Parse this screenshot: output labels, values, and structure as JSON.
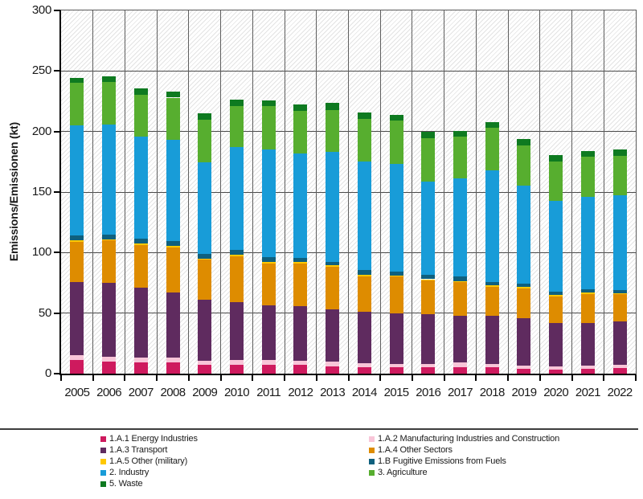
{
  "chart_data": {
    "type": "bar",
    "stacked": true,
    "title": "",
    "xlabel": "",
    "ylabel": "Emissions/Emissionen (kt)",
    "unit": "kt",
    "ylim": [
      0,
      300
    ],
    "yticks": [
      0,
      50,
      100,
      150,
      200,
      250,
      300
    ],
    "grid": "horizontal gridlines every 50; vertical separators between year columns; hatched plot background",
    "legend_position": "bottom, two columns",
    "categories": [
      "2005",
      "2006",
      "2007",
      "2008",
      "2009",
      "2010",
      "2011",
      "2012",
      "2013",
      "2014",
      "2015",
      "2016",
      "2017",
      "2018",
      "2019",
      "2020",
      "2021",
      "2022"
    ],
    "series": [
      {
        "name": "1.A.1 Energy Industries",
        "color": "#CE1A5E",
        "values": [
          11,
          10,
          9,
          9,
          7,
          7,
          7,
          7,
          6,
          5.5,
          5,
          5,
          5.5,
          5,
          4,
          3.5,
          4,
          4.5
        ]
      },
      {
        "name": "1.A.2 Manufacturing Industries and Construction",
        "color": "#F8C5D8",
        "values": [
          4.5,
          4,
          4,
          4,
          3.5,
          4,
          4,
          3.5,
          4,
          3,
          3,
          3,
          3.5,
          3,
          2.5,
          2.5,
          2.5,
          3
        ]
      },
      {
        "name": "1.A.3 Transport",
        "color": "#5F2B5F",
        "values": [
          60.5,
          61,
          58,
          54,
          50.5,
          48,
          45.5,
          45,
          43,
          42.5,
          42,
          41,
          39,
          39.5,
          39.5,
          35.5,
          35.5,
          35.5
        ]
      },
      {
        "name": "1.A.4 Other Sectors",
        "color": "#DE8C00",
        "values": [
          33,
          35,
          35.5,
          37.5,
          33,
          38,
          34.5,
          35.5,
          35.5,
          29.5,
          30,
          28,
          27.5,
          24.5,
          24.5,
          22.5,
          24,
          22.5
        ]
      },
      {
        "name": "1.A.5 Other (military)",
        "color": "#FFC800",
        "values": [
          1,
          1,
          1,
          1,
          1,
          1,
          1,
          1,
          1,
          1,
          1,
          1,
          1,
          1,
          1,
          1,
          1,
          1
        ]
      },
      {
        "name": "1.B Fugitive Emissions from Fuels",
        "color": "#0F607E",
        "values": [
          4,
          4,
          4,
          4,
          4,
          4,
          4,
          3.5,
          3,
          4,
          3.5,
          3.5,
          3.5,
          3,
          3,
          2.5,
          3,
          2.5
        ]
      },
      {
        "name": "2. Industry",
        "color": "#189CD8",
        "values": [
          91,
          91,
          84.5,
          83.5,
          75.5,
          85.5,
          89.5,
          86.5,
          90.5,
          89.5,
          89,
          77,
          81,
          92,
          80.5,
          75,
          76,
          78.5
        ]
      },
      {
        "name": "3. Agriculture",
        "color": "#57AE2F",
        "values": [
          35,
          35,
          34.5,
          35,
          35,
          33.5,
          35.5,
          35,
          35,
          35.5,
          35.5,
          36,
          34.5,
          35,
          33.5,
          33,
          33,
          32.5
        ]
      },
      {
        "name": "5. Waste",
        "color": "#0E7A20",
        "values": [
          4,
          4.5,
          5,
          5,
          5.5,
          5.5,
          5,
          5.5,
          5.5,
          5.5,
          5,
          5,
          5,
          5,
          5,
          5,
          5,
          5
        ]
      }
    ]
  }
}
